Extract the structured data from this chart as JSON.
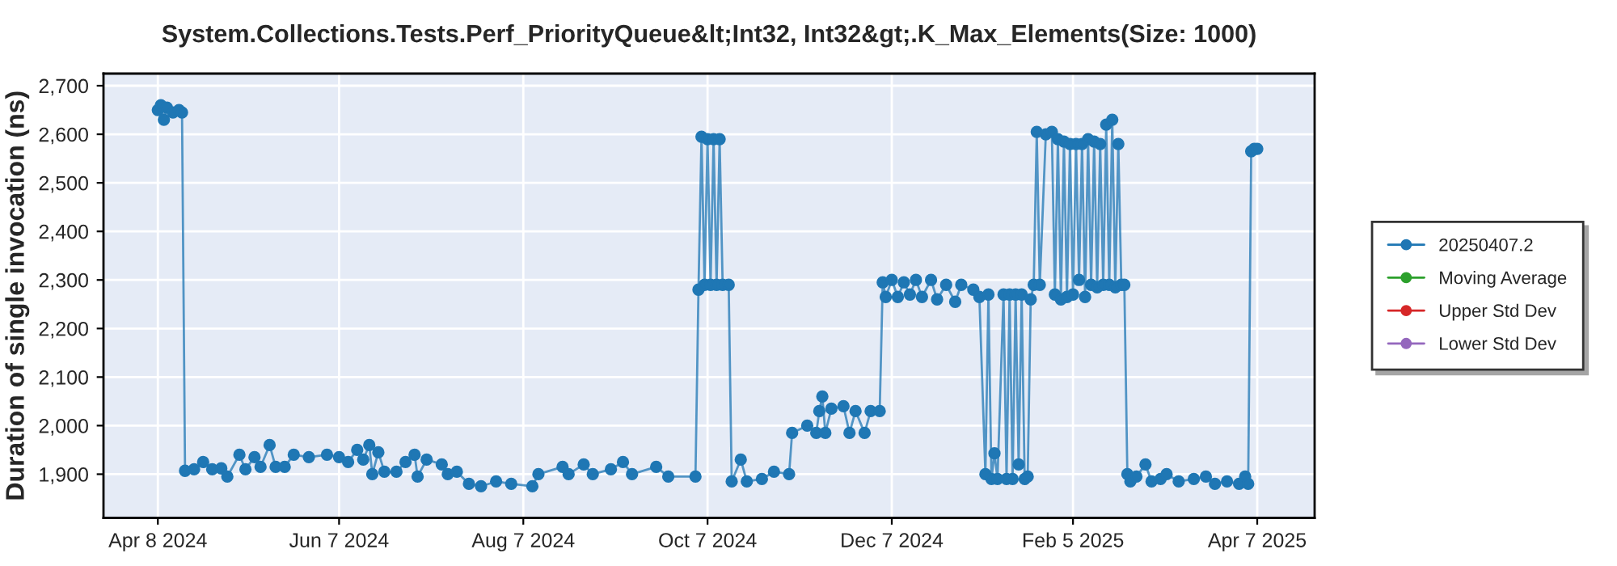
{
  "chart_data": {
    "type": "line",
    "title": "System.Collections.Tests.Perf_PriorityQueue&lt;Int32, Int32&gt;.K_Max_Elements(Size: 1000)",
    "ylabel": "Duration of single invocation (ns)",
    "x": [
      "2024-04-08",
      "2024-04-09",
      "2024-04-10",
      "2024-04-11",
      "2024-04-13",
      "2024-04-15",
      "2024-04-16",
      "2024-04-17",
      "2024-04-20",
      "2024-04-23",
      "2024-04-26",
      "2024-04-29",
      "2024-05-01",
      "2024-05-05",
      "2024-05-07",
      "2024-05-10",
      "2024-05-12",
      "2024-05-15",
      "2024-05-17",
      "2024-05-20",
      "2024-05-23",
      "2024-05-28",
      "2024-06-03",
      "2024-06-07",
      "2024-06-10",
      "2024-06-13",
      "2024-06-15",
      "2024-06-17",
      "2024-06-18",
      "2024-06-20",
      "2024-06-22",
      "2024-06-26",
      "2024-06-29",
      "2024-07-02",
      "2024-07-03",
      "2024-07-06",
      "2024-07-11",
      "2024-07-13",
      "2024-07-16",
      "2024-07-20",
      "2024-07-24",
      "2024-07-29",
      "2024-08-03",
      "2024-08-10",
      "2024-08-12",
      "2024-08-20",
      "2024-08-22",
      "2024-08-27",
      "2024-08-30",
      "2024-09-05",
      "2024-09-09",
      "2024-09-12",
      "2024-09-20",
      "2024-09-24",
      "2024-10-03",
      "2024-10-04",
      "2024-10-05",
      "2024-10-06",
      "2024-10-07",
      "2024-10-08",
      "2024-10-09",
      "2024-10-10",
      "2024-10-11",
      "2024-10-12",
      "2024-10-14",
      "2024-10-15",
      "2024-10-18",
      "2024-10-20",
      "2024-10-25",
      "2024-10-29",
      "2024-11-03",
      "2024-11-04",
      "2024-11-09",
      "2024-11-12",
      "2024-11-13",
      "2024-11-14",
      "2024-11-15",
      "2024-11-17",
      "2024-11-21",
      "2024-11-23",
      "2024-11-25",
      "2024-11-28",
      "2024-11-30",
      "2024-12-03",
      "2024-12-04",
      "2024-12-05",
      "2024-12-07",
      "2024-12-09",
      "2024-12-11",
      "2024-12-13",
      "2024-12-15",
      "2024-12-17",
      "2024-12-20",
      "2024-12-22",
      "2024-12-25",
      "2024-12-28",
      "2024-12-30",
      "2025-01-03",
      "2025-01-05",
      "2025-01-07",
      "2025-01-08",
      "2025-01-09",
      "2025-01-10",
      "2025-01-11",
      "2025-01-13",
      "2025-01-14",
      "2025-01-15",
      "2025-01-16",
      "2025-01-17",
      "2025-01-18",
      "2025-01-19",
      "2025-01-20",
      "2025-01-21",
      "2025-01-22",
      "2025-01-23",
      "2025-01-24",
      "2025-01-25",
      "2025-01-27",
      "2025-01-29",
      "2025-01-30",
      "2025-01-31",
      "2025-02-01",
      "2025-02-02",
      "2025-02-03",
      "2025-02-04",
      "2025-02-05",
      "2025-02-06",
      "2025-02-07",
      "2025-02-08",
      "2025-02-09",
      "2025-02-10",
      "2025-02-11",
      "2025-02-12",
      "2025-02-13",
      "2025-02-14",
      "2025-02-15",
      "2025-02-16",
      "2025-02-17",
      "2025-02-18",
      "2025-02-19",
      "2025-02-20",
      "2025-02-21",
      "2025-02-22",
      "2025-02-23",
      "2025-02-24",
      "2025-02-26",
      "2025-03-01",
      "2025-03-03",
      "2025-03-06",
      "2025-03-08",
      "2025-03-12",
      "2025-03-17",
      "2025-03-21",
      "2025-03-24",
      "2025-03-28",
      "2025-04-01",
      "2025-04-03",
      "2025-04-04",
      "2025-04-05",
      "2025-04-06",
      "2025-04-07"
    ],
    "series": [
      {
        "name": "20250407.2",
        "color": "#1f77b4",
        "values": [
          2650,
          2660,
          2630,
          2655,
          2645,
          2650,
          2645,
          1907,
          1910,
          1925,
          1910,
          1912,
          1895,
          1940,
          1910,
          1935,
          1915,
          1960,
          1915,
          1915,
          1940,
          1935,
          1940,
          1935,
          1925,
          1950,
          1930,
          1960,
          1900,
          1945,
          1905,
          1905,
          1925,
          1940,
          1895,
          1930,
          1920,
          1900,
          1905,
          1880,
          1875,
          1885,
          1880,
          1875,
          1900,
          1915,
          1900,
          1920,
          1900,
          1910,
          1925,
          1900,
          1915,
          1895,
          1895,
          2280,
          2595,
          2290,
          2590,
          2290,
          2590,
          2290,
          2590,
          2290,
          2290,
          1885,
          1930,
          1885,
          1890,
          1905,
          1900,
          1985,
          2000,
          1985,
          2030,
          2060,
          1985,
          2035,
          2040,
          1985,
          2030,
          1985,
          2030,
          2030,
          2295,
          2265,
          2300,
          2265,
          2295,
          2270,
          2300,
          2265,
          2300,
          2260,
          2290,
          2255,
          2290,
          2280,
          2265,
          1900,
          2270,
          1890,
          1943,
          1890,
          2270,
          1890,
          2270,
          1890,
          2270,
          1920,
          2270,
          1890,
          1895,
          2260,
          2290,
          2605,
          2290,
          2600,
          2605,
          2270,
          2590,
          2260,
          2585,
          2265,
          2580,
          2270,
          2580,
          2300,
          2580,
          2265,
          2590,
          2290,
          2585,
          2285,
          2580,
          2290,
          2620,
          2290,
          2630,
          2285,
          2580,
          2290,
          2290,
          1900,
          1885,
          1895,
          1920,
          1885,
          1890,
          1900,
          1885,
          1890,
          1895,
          1880,
          1885,
          1880,
          1895,
          1880,
          2565,
          2570,
          2570
        ]
      },
      {
        "name": "Moving Average",
        "color": "#2ca02c",
        "values": [
          null,
          null,
          null,
          null,
          null,
          null,
          null,
          null,
          null,
          null,
          null,
          null,
          null,
          null,
          null,
          null,
          null,
          null,
          null,
          null,
          null,
          null,
          null,
          null,
          null,
          null,
          null,
          null,
          null,
          null,
          null,
          null,
          null,
          null,
          null,
          null,
          null,
          null,
          null,
          null,
          null,
          null,
          null,
          null,
          null,
          null,
          null,
          null,
          null,
          null,
          null,
          null,
          null,
          null,
          null,
          null,
          null,
          null,
          null,
          null,
          null,
          null,
          null,
          null,
          null,
          null,
          null,
          null,
          null,
          null,
          null,
          null,
          null,
          null,
          null,
          null,
          null,
          null,
          null,
          null,
          null,
          null,
          null,
          null,
          null,
          null,
          null,
          null,
          null,
          null,
          null,
          null,
          null,
          null,
          null,
          null,
          null,
          null,
          null,
          null,
          null,
          null,
          null,
          null,
          null,
          null,
          null,
          null,
          null,
          null,
          null,
          null,
          null,
          null,
          null,
          null,
          null,
          null,
          null,
          null,
          null,
          null,
          null,
          null,
          null,
          null,
          null,
          null,
          null,
          null,
          null,
          null,
          null,
          null,
          null,
          null,
          null,
          null,
          null,
          null,
          null,
          null,
          null,
          null,
          null,
          null,
          null,
          null,
          null,
          null,
          null,
          null,
          null,
          null,
          null,
          null,
          null,
          null,
          null,
          null,
          null
        ]
      },
      {
        "name": "Upper Std Dev",
        "color": "#d62728",
        "values": [
          null,
          null,
          null,
          null,
          null,
          null,
          null,
          null,
          null,
          null,
          null,
          null,
          null,
          null,
          null,
          null,
          null,
          null,
          null,
          null,
          null,
          null,
          null,
          null,
          null,
          null,
          null,
          null,
          null,
          null,
          null,
          null,
          null,
          null,
          null,
          null,
          null,
          null,
          null,
          null,
          null,
          null,
          null,
          null,
          null,
          null,
          null,
          null,
          null,
          null,
          null,
          null,
          null,
          null,
          null,
          null,
          null,
          null,
          null,
          null,
          null,
          null,
          null,
          null,
          null,
          null,
          null,
          null,
          null,
          null,
          null,
          null,
          null,
          null,
          null,
          null,
          null,
          null,
          null,
          null,
          null,
          null,
          null,
          null,
          null,
          null,
          null,
          null,
          null,
          null,
          null,
          null,
          null,
          null,
          null,
          null,
          null,
          null,
          null,
          null,
          null,
          null,
          null,
          null,
          null,
          null,
          null,
          null,
          null,
          null,
          null,
          null,
          null,
          null,
          null,
          null,
          null,
          null,
          null,
          null,
          null,
          null,
          null,
          null,
          null,
          null,
          null,
          null,
          null,
          null,
          null,
          null,
          null,
          null,
          null,
          null,
          null,
          null,
          null,
          null,
          null,
          null,
          null,
          null,
          null,
          null,
          null,
          null,
          null,
          null,
          null,
          null,
          null,
          null,
          null,
          null,
          null,
          null,
          null,
          null,
          null
        ]
      },
      {
        "name": "Lower Std Dev",
        "color": "#9467bd",
        "values": [
          null,
          null,
          null,
          null,
          null,
          null,
          null,
          null,
          null,
          null,
          null,
          null,
          null,
          null,
          null,
          null,
          null,
          null,
          null,
          null,
          null,
          null,
          null,
          null,
          null,
          null,
          null,
          null,
          null,
          null,
          null,
          null,
          null,
          null,
          null,
          null,
          null,
          null,
          null,
          null,
          null,
          null,
          null,
          null,
          null,
          null,
          null,
          null,
          null,
          null,
          null,
          null,
          null,
          null,
          null,
          null,
          null,
          null,
          null,
          null,
          null,
          null,
          null,
          null,
          null,
          null,
          null,
          null,
          null,
          null,
          null,
          null,
          null,
          null,
          null,
          null,
          null,
          null,
          null,
          null,
          null,
          null,
          null,
          null,
          null,
          null,
          null,
          null,
          null,
          null,
          null,
          null,
          null,
          null,
          null,
          null,
          null,
          null,
          null,
          null,
          null,
          null,
          null,
          null,
          null,
          null,
          null,
          null,
          null,
          null,
          null,
          null,
          null,
          null,
          null,
          null,
          null,
          null,
          null,
          null,
          null,
          null,
          null,
          null,
          null,
          null,
          null,
          null,
          null,
          null,
          null,
          null,
          null,
          null,
          null,
          null,
          null,
          null,
          null,
          null,
          null,
          null,
          null,
          null,
          null,
          null,
          null,
          null,
          null,
          null,
          null,
          null,
          null,
          null,
          null,
          null,
          null,
          null,
          null,
          null,
          null
        ]
      }
    ],
    "xlim": [
      "2024-03-21",
      "2025-04-26"
    ],
    "xticks": [
      {
        "value": "2024-04-08",
        "label": "Apr 8 2024"
      },
      {
        "value": "2024-06-07",
        "label": "Jun 7 2024"
      },
      {
        "value": "2024-08-07",
        "label": "Aug 7 2024"
      },
      {
        "value": "2024-10-07",
        "label": "Oct 7 2024"
      },
      {
        "value": "2024-12-07",
        "label": "Dec 7 2024"
      },
      {
        "value": "2025-02-05",
        "label": "Feb 5 2025"
      },
      {
        "value": "2025-04-07",
        "label": "Apr 7 2025"
      }
    ],
    "ylim": [
      1810,
      2725
    ],
    "yticks": [
      {
        "value": 1900,
        "label": "1,900"
      },
      {
        "value": 2000,
        "label": "2,000"
      },
      {
        "value": 2100,
        "label": "2,100"
      },
      {
        "value": 2200,
        "label": "2,200"
      },
      {
        "value": 2300,
        "label": "2,300"
      },
      {
        "value": 2400,
        "label": "2,400"
      },
      {
        "value": 2500,
        "label": "2,500"
      },
      {
        "value": 2600,
        "label": "2,600"
      },
      {
        "value": 2700,
        "label": "2,700"
      }
    ],
    "grid": true,
    "legend": "right",
    "marker": "circle",
    "line_style": "solid"
  }
}
